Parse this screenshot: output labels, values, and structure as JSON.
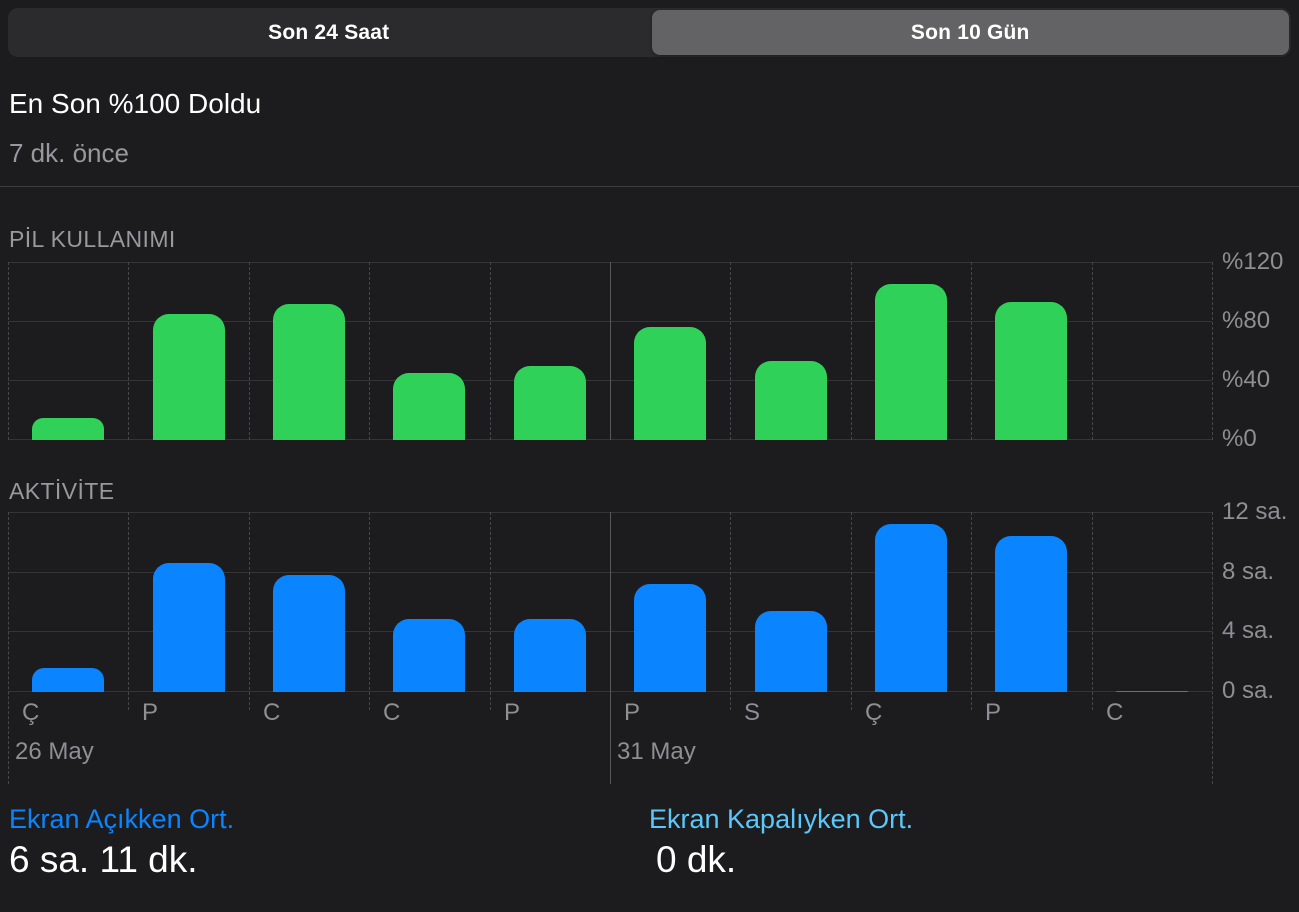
{
  "segmented_control": {
    "options": [
      {
        "label": "Son 24 Saat",
        "selected": false
      },
      {
        "label": "Son 10 Gün",
        "selected": true
      }
    ]
  },
  "header": {
    "title": "En Son %100 Doldu",
    "subtitle": "7 dk. önce"
  },
  "chart_data": [
    {
      "type": "bar",
      "title": "PİL KULLANIMI",
      "categories": [
        "Ç",
        "P",
        "C",
        "C",
        "P",
        "P",
        "S",
        "Ç",
        "P",
        "C"
      ],
      "values": [
        15,
        85,
        92,
        45,
        50,
        76,
        53,
        105,
        93,
        0
      ],
      "unit": "percent",
      "ylim": [
        0,
        120
      ],
      "ytick_labels": [
        "%120",
        "%80",
        "%40",
        "%0"
      ],
      "yaxis_position": "right",
      "bar_color": "#30d158",
      "grid": "horizontal solid lines, dashed vertical column separators"
    },
    {
      "type": "bar",
      "title": "AKTİVİTE",
      "categories": [
        "Ç",
        "P",
        "C",
        "C",
        "P",
        "P",
        "S",
        "Ç",
        "P",
        "C"
      ],
      "values": [
        1.6,
        8.6,
        7.8,
        4.9,
        4.9,
        7.2,
        5.4,
        11.2,
        10.4,
        0.1
      ],
      "unit": "hours",
      "ylim": [
        0,
        12
      ],
      "ytick_labels": [
        "12 sa.",
        "8 sa.",
        "4 sa.",
        "0 sa."
      ],
      "yaxis_position": "right",
      "bar_color": "#0a84ff",
      "grid": "horizontal solid lines, dashed vertical column separators"
    }
  ],
  "x_axis": {
    "day_labels": [
      "Ç",
      "P",
      "C",
      "C",
      "P",
      "P",
      "S",
      "Ç",
      "P",
      "C"
    ],
    "date_labels": [
      {
        "text": "26 May",
        "column": 0
      },
      {
        "text": "31 May",
        "column": 5
      }
    ],
    "week_separator_column": 5
  },
  "stats": [
    {
      "label": "Ekran Açıkken Ort.",
      "value": "6 sa. 11 dk.",
      "label_color": "#0a84ff"
    },
    {
      "label": "Ekran Kapalıyken Ort.",
      "value": "0 dk.",
      "label_color": "#5ac8fa"
    }
  ],
  "colors": {
    "background": "#1c1c1e",
    "accent_green": "#30d158",
    "accent_blue": "#0a84ff",
    "accent_lightblue": "#5ac8fa",
    "text_primary": "#ffffff",
    "text_secondary": "#98989d",
    "axis_text": "#8e8e93",
    "grid_line": "#353538",
    "grid_dash": "#47474b",
    "week_separator": "#58585c",
    "segment_track": "#2b2b2d",
    "segment_selected": "#636366",
    "separator": "#3c3c3e"
  }
}
